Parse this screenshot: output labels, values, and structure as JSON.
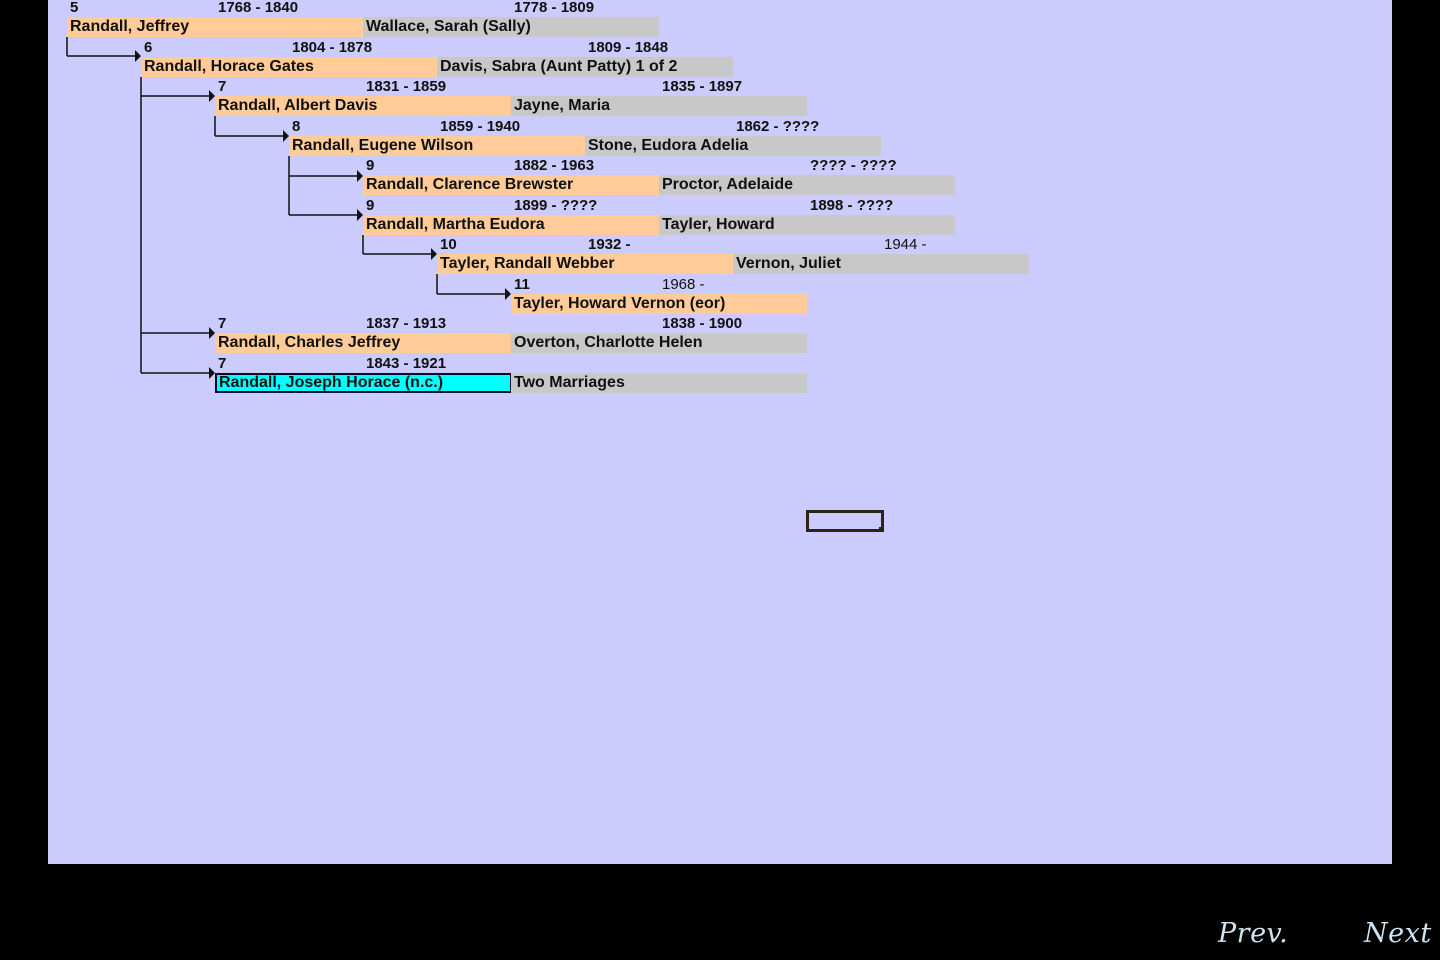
{
  "tree": {
    "rows": [
      {
        "gen": "5",
        "person_dates": "1768 - 1840",
        "person": "Randall, Jeffrey",
        "spouse_dates": "1778 - 1809",
        "spouse": "Wallace, Sarah (Sally)"
      },
      {
        "gen": "6",
        "person_dates": "1804 - 1878",
        "person": "Randall, Horace Gates",
        "spouse_dates": "1809 - 1848",
        "spouse": "Davis, Sabra (Aunt Patty) 1 of 2"
      },
      {
        "gen": "7",
        "person_dates": "1831 - 1859",
        "person": "Randall, Albert Davis",
        "spouse_dates": "1835 - 1897",
        "spouse": "Jayne, Maria"
      },
      {
        "gen": "8",
        "person_dates": "1859 - 1940",
        "person": "Randall, Eugene Wilson",
        "spouse_dates": "1862 - ????",
        "spouse": "Stone, Eudora Adelia"
      },
      {
        "gen": "9",
        "person_dates": "1882 -  1963",
        "person": "Randall, Clarence Brewster",
        "spouse_dates": "???? - ????",
        "spouse": "Proctor, Adelaide"
      },
      {
        "gen": "9",
        "person_dates": "1899 - ????",
        "person": "Randall, Martha Eudora",
        "spouse_dates": "1898 - ????",
        "spouse": "Tayler, Howard"
      },
      {
        "gen": "10",
        "person_dates": "1932 -",
        "person": "Tayler, Randall Webber",
        "spouse_dates": "1944 -",
        "spouse": "Vernon, Juliet"
      },
      {
        "gen": "11",
        "person_dates": "1968 -",
        "person": "Tayler, Howard Vernon (eor)",
        "spouse_dates": "",
        "spouse": ""
      },
      {
        "gen": "7",
        "person_dates": "1837 - 1913",
        "person": "Randall, Charles Jeffrey",
        "spouse_dates": "1838 - 1900",
        "spouse": "Overton, Charlotte Helen"
      },
      {
        "gen": "7",
        "person_dates": "1843 - 1921",
        "person": "Randall, Joseph Horace (n.c.)",
        "spouse_dates": "",
        "spouse": "Two Marriages",
        "selected": true
      }
    ]
  },
  "nav": {
    "prev_label": "Prev.",
    "next_label": "Next"
  },
  "colors": {
    "frame": "#000000",
    "canvas": "#cccbfd",
    "person_box": "#ffcc99",
    "spouse_box": "#c8c8c8",
    "selected_box": "#00ffff",
    "nav_text": "#cfe4f2"
  }
}
